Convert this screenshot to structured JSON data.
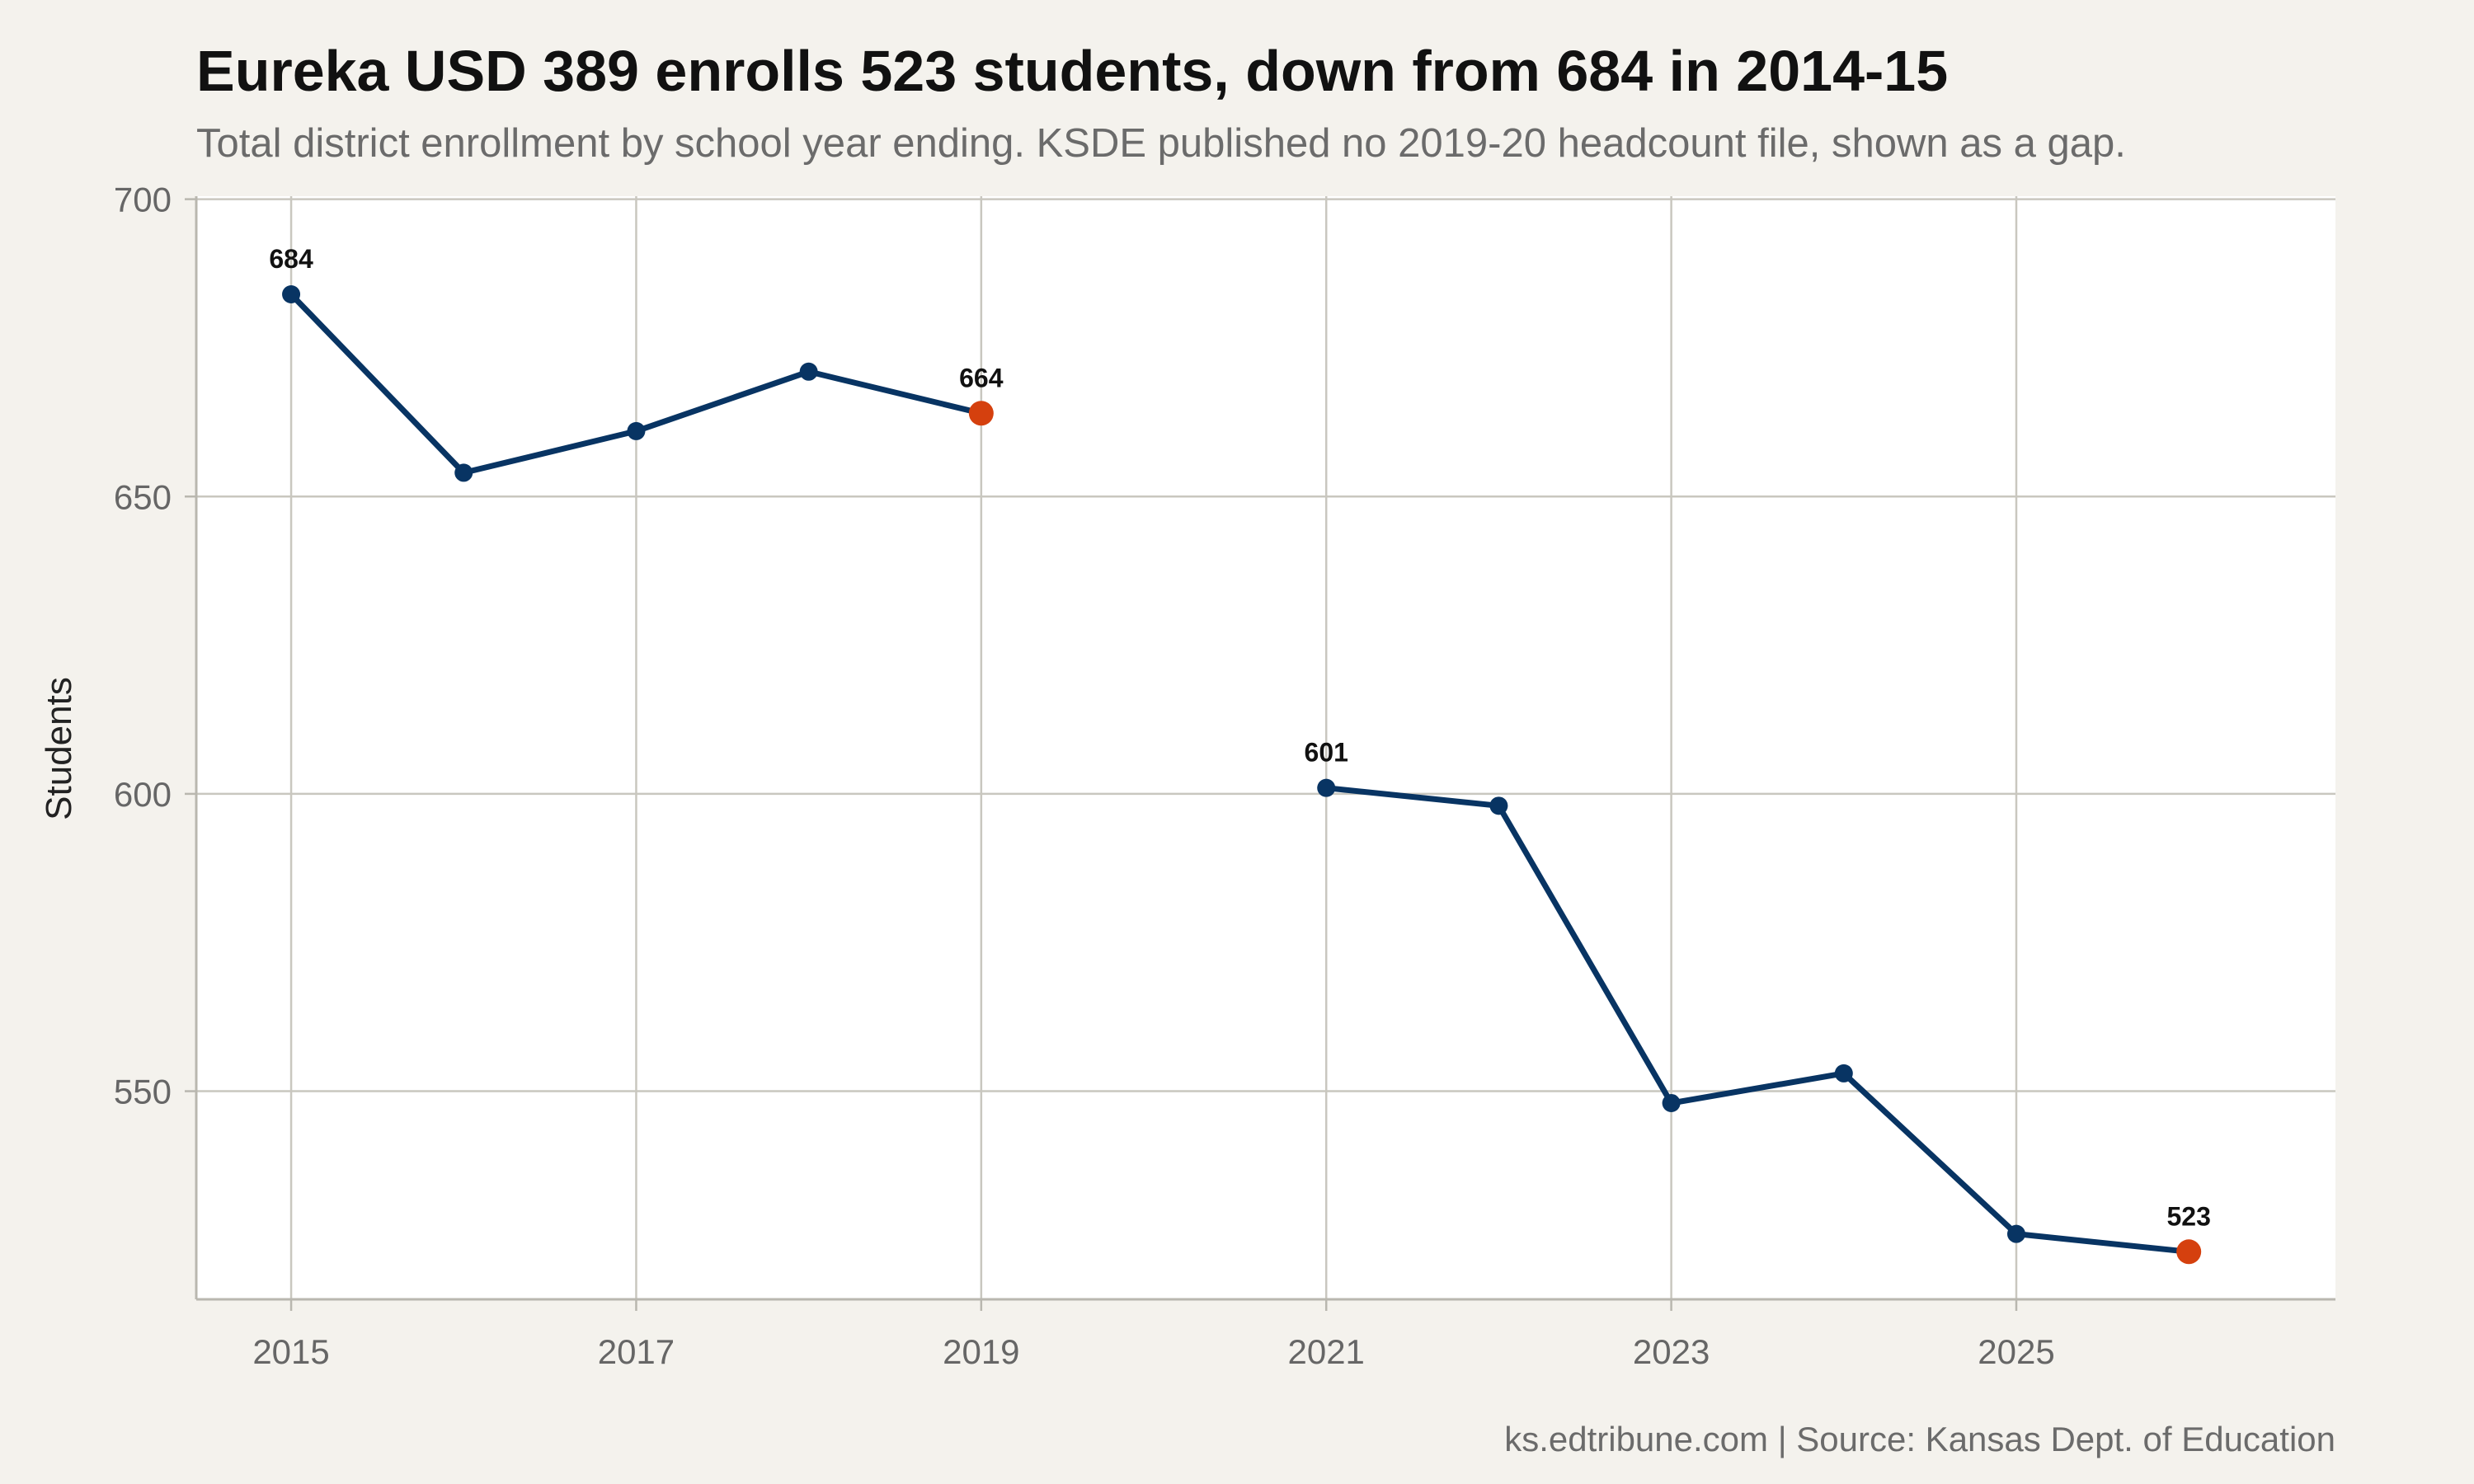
{
  "chart_data": {
    "type": "line",
    "title": "Eureka USD 389 enrolls 523 students, down from 684 in 2014-15",
    "subtitle": "Total district enrollment by school year ending. KSDE published no 2019-20 headcount file, shown as a gap.",
    "xlabel": "",
    "ylabel": "Students",
    "caption": "ks.edtribune.com | Source: Kansas Dept. of Education",
    "xlim": [
      2014.45,
      2026.85
    ],
    "ylim": [
      515,
      700.5
    ],
    "x_ticks": [
      2015,
      2017,
      2019,
      2021,
      2023,
      2025
    ],
    "y_ticks": [
      550,
      600,
      650,
      700
    ],
    "grid": true,
    "legend": "none",
    "colors": {
      "line": "#083463",
      "highlight": "#d5400e",
      "background": "#f4f2ed",
      "panel": "#ffffff",
      "grid": "#c9c7bf"
    },
    "series": [
      {
        "x": [
          2015,
          2016,
          2017,
          2018,
          2019,
          2020,
          2021,
          2022,
          2023,
          2024,
          2025,
          2026
        ],
        "values": [
          684,
          654,
          661,
          671,
          664,
          null,
          601,
          598,
          548,
          553,
          526,
          523
        ]
      }
    ],
    "highlighted_x": [
      2019,
      2026
    ],
    "data_labels": [
      {
        "x": 2015,
        "y": 684,
        "text": "684"
      },
      {
        "x": 2019,
        "y": 664,
        "text": "664"
      },
      {
        "x": 2021,
        "y": 601,
        "text": "601"
      },
      {
        "x": 2026,
        "y": 523,
        "text": "523"
      }
    ]
  }
}
